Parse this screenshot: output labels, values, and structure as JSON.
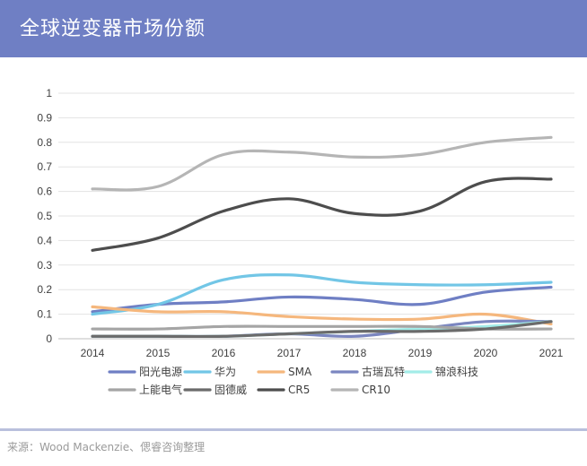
{
  "header": {
    "title": "全球逆变器市场份额"
  },
  "footer": {
    "source": "来源：Wood Mackenzie、偲睿咨询整理"
  },
  "colors": {
    "header_bg": "#6f7fc4",
    "footer_line": "#b9c0dd"
  },
  "chart_data": {
    "type": "line",
    "title": "",
    "xlabel": "",
    "ylabel": "",
    "ylim": [
      0,
      1
    ],
    "yticks": [
      "0",
      "0.1",
      "0.2",
      "0.3",
      "0.4",
      "0.5",
      "0.6",
      "0.7",
      "0.8",
      "0.9",
      "1"
    ],
    "grid": true,
    "legend_position": "bottom",
    "categories": [
      "2014",
      "2015",
      "2016",
      "2017",
      "2018",
      "2019",
      "2020",
      "2021"
    ],
    "series": [
      {
        "name": "阳光电源",
        "color": "#6f7fc4",
        "values": [
          0.11,
          0.14,
          0.15,
          0.17,
          0.16,
          0.14,
          0.19,
          0.21
        ]
      },
      {
        "name": "华为",
        "color": "#72c6e6",
        "values": [
          0.1,
          0.14,
          0.24,
          0.26,
          0.23,
          0.22,
          0.22,
          0.23
        ]
      },
      {
        "name": "SMA",
        "color": "#f5b77d",
        "values": [
          0.13,
          0.11,
          0.11,
          0.09,
          0.08,
          0.08,
          0.1,
          0.06
        ]
      },
      {
        "name": "古瑞瓦特",
        "color": "#7b86c0",
        "values": [
          0.01,
          0.01,
          0.01,
          0.02,
          0.01,
          0.04,
          0.07,
          0.07
        ]
      },
      {
        "name": "锦浪科技",
        "color": "#a3ece8",
        "values": [
          0.01,
          0.01,
          0.01,
          0.02,
          0.03,
          0.04,
          0.05,
          0.07
        ]
      },
      {
        "name": "上能电气",
        "color": "#a5a5a5",
        "values": [
          0.04,
          0.04,
          0.05,
          0.05,
          0.05,
          0.05,
          0.04,
          0.04
        ]
      },
      {
        "name": "固德威",
        "color": "#6b6b6b",
        "values": [
          0.01,
          0.01,
          0.01,
          0.02,
          0.03,
          0.03,
          0.04,
          0.07
        ]
      },
      {
        "name": "CR5",
        "color": "#4d4d4d",
        "values": [
          0.36,
          0.41,
          0.52,
          0.57,
          0.51,
          0.52,
          0.64,
          0.65
        ]
      },
      {
        "name": "CR10",
        "color": "#b5b5b5",
        "values": [
          0.61,
          0.62,
          0.75,
          0.76,
          0.74,
          0.75,
          0.8,
          0.82
        ]
      }
    ]
  }
}
